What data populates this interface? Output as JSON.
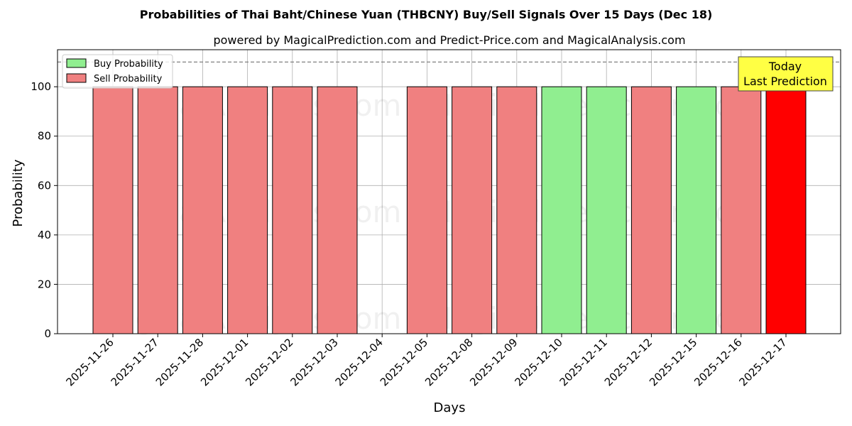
{
  "chart_data": {
    "type": "bar",
    "title": "Probabilities of Thai Baht/Chinese Yuan (THBCNY) Buy/Sell Signals Over 15 Days (Dec 18)",
    "subtitle": "powered by MagicalPrediction.com and Predict-Price.com and MagicalAnalysis.com",
    "xlabel": "Days",
    "ylabel": "Probability",
    "ylim": [
      0,
      115
    ],
    "yticks": [
      0,
      20,
      40,
      60,
      80,
      100
    ],
    "categories": [
      "2025-11-26",
      "2025-11-27",
      "2025-11-28",
      "2025-12-01",
      "2025-12-02",
      "2025-12-03",
      "2025-12-04",
      "2025-12-05",
      "2025-12-08",
      "2025-12-09",
      "2025-12-10",
      "2025-12-11",
      "2025-12-12",
      "2025-12-15",
      "2025-12-16",
      "2025-12-17"
    ],
    "series": [
      {
        "name": "Buy Probability",
        "color": "#90ee90",
        "values": [
          0,
          0,
          0,
          0,
          0,
          0,
          0,
          0,
          0,
          0,
          100,
          100,
          0,
          100,
          0,
          0
        ]
      },
      {
        "name": "Sell Probability",
        "color": "#f08080",
        "values": [
          100,
          100,
          100,
          100,
          100,
          100,
          0,
          100,
          100,
          100,
          0,
          0,
          100,
          0,
          100,
          100
        ]
      }
    ],
    "highlight": {
      "index": 15,
      "color": "#ff0000"
    },
    "reference_line": {
      "y": 110,
      "style": "dashed"
    },
    "legend_position": "top-left",
    "grid": true,
    "annotation": {
      "line1": "Today",
      "line2": "Last Prediction",
      "background": "#ffff44"
    },
    "watermark": [
      "MagicalAnalysis.com",
      "MagicalPrediction.com"
    ]
  }
}
